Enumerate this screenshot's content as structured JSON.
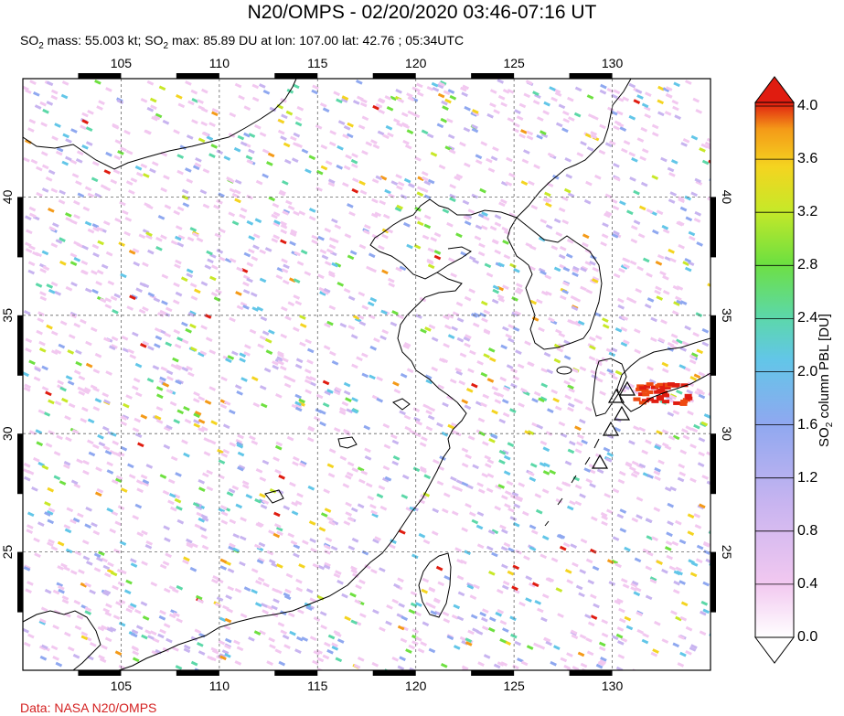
{
  "title": "N20/OMPS - 02/20/2020 03:46-07:16 UT",
  "subtitle": {
    "mass_label_pre": "SO",
    "mass_label_post": " mass: 55.003 kt; SO",
    "max_label_post": " max: 85.89 DU at lon: 107.00 lat: 42.76 ; 05:34UTC"
  },
  "credit": "Data: NASA N20/OMPS",
  "map": {
    "lon_ticks": [
      "105",
      "110",
      "115",
      "120",
      "125",
      "130"
    ],
    "lon_values": [
      105,
      110,
      115,
      120,
      125,
      130
    ],
    "lat_ticks": [
      "40",
      "35",
      "30",
      "25"
    ],
    "lat_values": [
      40,
      35,
      30,
      25
    ],
    "lon_range": [
      100,
      135
    ],
    "lat_range": [
      20,
      45
    ]
  },
  "colorbar": {
    "labels": [
      "4.0",
      "3.6",
      "3.2",
      "2.8",
      "2.4",
      "2.0",
      "1.6",
      "1.2",
      "0.8",
      "0.4",
      "0.0"
    ],
    "values": [
      4.0,
      3.6,
      3.2,
      2.8,
      2.4,
      2.0,
      1.6,
      1.2,
      0.8,
      0.4,
      0.0
    ],
    "title_pre": "SO",
    "title_sub": "2",
    "title_post": " column PBL [DU]",
    "colors": [
      "#ffffff",
      "#f2c8f0",
      "#c8b4f0",
      "#8fa8f0",
      "#62c6e8",
      "#5cd8a8",
      "#6ee040",
      "#c8e828",
      "#f4d420",
      "#f49a18",
      "#ee4a10",
      "#e01c10"
    ]
  }
}
